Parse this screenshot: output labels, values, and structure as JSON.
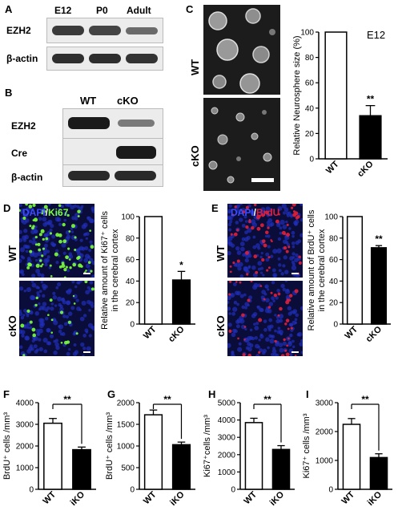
{
  "panelA": {
    "letter": "A",
    "lanes": [
      "E12",
      "P0",
      "Adult"
    ],
    "rows": [
      "EZH2",
      "β-actin"
    ]
  },
  "panelB": {
    "letter": "B",
    "lanes": [
      "WT",
      "cKO"
    ],
    "rows": [
      "EZH2",
      "Cre",
      "β-actin"
    ]
  },
  "panelC": {
    "letter": "C",
    "image_labels": [
      "WT",
      "cKO"
    ],
    "annotation": "E12"
  },
  "panelD": {
    "letter": "D",
    "stain_dapi": "DAPI",
    "stain_sep": "/",
    "stain_marker": "Ki67",
    "image_labels": [
      "WT",
      "cKO"
    ]
  },
  "panelE": {
    "letter": "E",
    "stain_dapi": "DAPI",
    "stain_sep": "/",
    "stain_marker": "BrdU",
    "image_labels": [
      "WT",
      "cKO"
    ]
  },
  "panelF": {
    "letter": "F"
  },
  "panelG": {
    "letter": "G"
  },
  "panelH": {
    "letter": "H"
  },
  "panelI": {
    "letter": "I"
  },
  "colors": {
    "bar_wt": "#ffffff",
    "bar_ko": "#000000",
    "dapi": "#1f2fb8",
    "ki67": "#7cff3a",
    "brdu": "#e0203a"
  },
  "chart_data": [
    {
      "id": "C",
      "type": "bar",
      "categories": [
        "WT",
        "cKO"
      ],
      "values": [
        100,
        34
      ],
      "errors": [
        0,
        8
      ],
      "ylabel": "Relative Neurosphere size (%)",
      "ylim": [
        0,
        100
      ],
      "yticks": [
        0,
        20,
        40,
        60,
        80,
        100
      ],
      "significance": "**"
    },
    {
      "id": "D",
      "type": "bar",
      "categories": [
        "WT",
        "cKO"
      ],
      "values": [
        100,
        41
      ],
      "errors": [
        0,
        8
      ],
      "ylabel_line1": "Relative amount of Ki67⁺ cells",
      "ylabel_line2": "in the cerebral cortex",
      "ylim": [
        0,
        100
      ],
      "yticks": [
        0,
        20,
        40,
        60,
        80,
        100
      ],
      "significance": "*"
    },
    {
      "id": "E",
      "type": "bar",
      "categories": [
        "WT",
        "cKO"
      ],
      "values": [
        100,
        71
      ],
      "errors": [
        0,
        2
      ],
      "ylabel_line1": "Relative amount of BrdU⁺ cells",
      "ylabel_line2": "in the cerebral cortex",
      "ylim": [
        0,
        100
      ],
      "yticks": [
        0,
        20,
        40,
        60,
        80,
        100
      ],
      "significance": "**"
    },
    {
      "id": "F",
      "type": "bar",
      "categories": [
        "WT",
        "iKO"
      ],
      "values": [
        3050,
        1830
      ],
      "errors": [
        220,
        120
      ],
      "ylabel": "BrdU⁺ cells /mm³",
      "ylim": [
        0,
        4000
      ],
      "yticks": [
        0,
        1000,
        2000,
        3000,
        4000
      ],
      "significance": "**"
    },
    {
      "id": "G",
      "type": "bar",
      "categories": [
        "WT",
        "iKO"
      ],
      "values": [
        1720,
        1030
      ],
      "errors": [
        110,
        60
      ],
      "ylabel": "BrdU⁺ cells /mm³",
      "ylim": [
        0,
        2000
      ],
      "yticks": [
        0,
        500,
        1000,
        1500,
        2000
      ],
      "significance": "**"
    },
    {
      "id": "H",
      "type": "bar",
      "categories": [
        "WT",
        "iKO"
      ],
      "values": [
        3850,
        2300
      ],
      "errors": [
        250,
        220
      ],
      "ylabel": "Ki67⁺cells /mm³",
      "ylim": [
        0,
        5000
      ],
      "yticks": [
        0,
        1000,
        2000,
        3000,
        4000,
        5000
      ],
      "significance": "**"
    },
    {
      "id": "I",
      "type": "bar",
      "categories": [
        "WT",
        "iKO"
      ],
      "values": [
        2250,
        1100
      ],
      "errors": [
        200,
        130
      ],
      "ylabel": "Ki67⁺ cells /mm³",
      "ylim": [
        0,
        3000
      ],
      "yticks": [
        0,
        1000,
        2000,
        3000
      ],
      "significance": "**"
    }
  ]
}
